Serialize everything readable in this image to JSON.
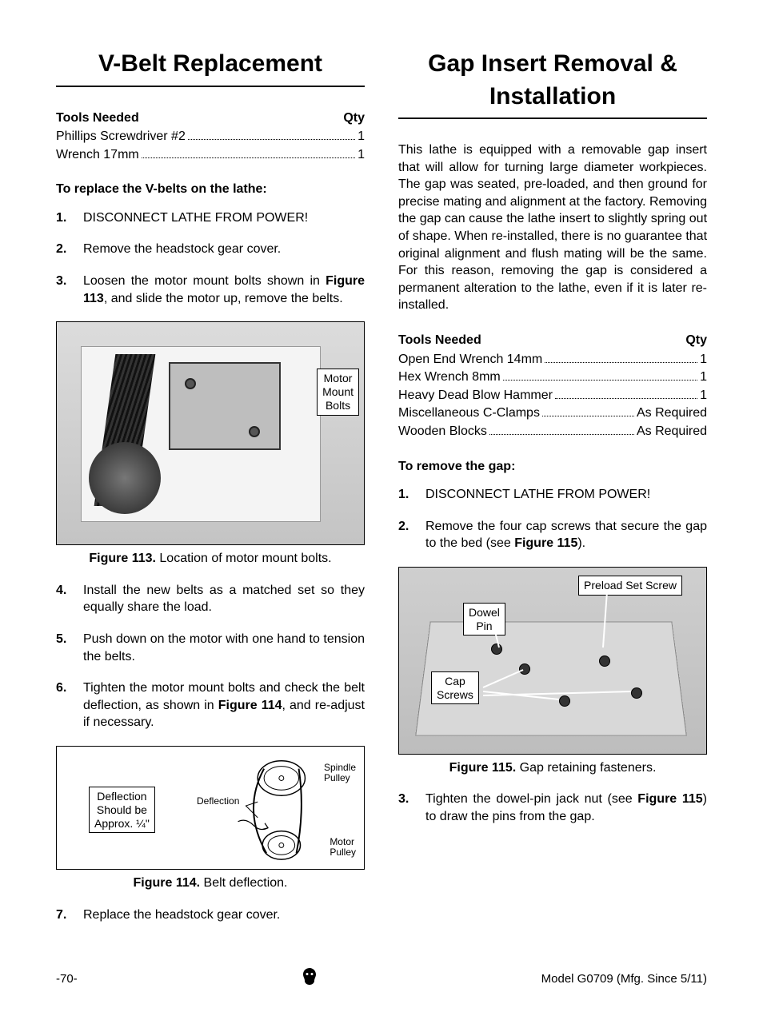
{
  "left": {
    "title": "V-Belt Replacement",
    "tools_header": {
      "label": "Tools Needed",
      "qty": "Qty"
    },
    "tools": [
      {
        "name": "Phillips Screwdriver #2",
        "qty": "1"
      },
      {
        "name": "Wrench 17mm",
        "qty": "1"
      }
    ],
    "procedure_head": "To replace the V-belts on the lathe:",
    "steps_a": [
      {
        "n": "1.",
        "t": "DISCONNECT LATHE FROM POWER!"
      },
      {
        "n": "2.",
        "t": "Remove the headstock gear cover."
      },
      {
        "n": "3.",
        "t": "Loosen the motor mount bolts shown in <b>Figure 113</b>, and slide the motor up, remove the belts."
      }
    ],
    "fig113": {
      "callout": "Motor\nMount\nBolts",
      "caption_b": "Figure 113.",
      "caption_t": " Location of motor mount bolts."
    },
    "steps_b": [
      {
        "n": "4.",
        "t": "Install the new belts as a matched set so they equally share the load."
      },
      {
        "n": "5.",
        "t": "Push down on the motor with one hand to tension the belts."
      },
      {
        "n": "6.",
        "t": "Tighten the motor mount bolts and check the belt deflection, as shown in <b>Figure 114</b>, and re-adjust if necessary."
      }
    ],
    "fig114": {
      "box": "Deflection\nShould be\nApprox. ¼\"",
      "label_deflection": "Deflection",
      "label_spindle": "Spindle\nPulley",
      "label_motor": "Motor\nPulley",
      "caption_b": "Figure 114.",
      "caption_t": " Belt deflection."
    },
    "steps_c": [
      {
        "n": "7.",
        "t": "Replace the headstock gear cover."
      }
    ]
  },
  "right": {
    "title": "Gap Insert Removal & Installation",
    "intro": "This lathe is equipped with a removable gap insert that will allow for turning large diameter workpieces. The gap was seated, pre-loaded, and then ground for precise mating and alignment at the factory. Removing the gap can cause the lathe insert to slightly spring out of shape. When re-installed, there is no guarantee that original alignment and flush mating will be the same. For this reason, removing the gap is considered a permanent alteration to the lathe, even if it is later re-installed.",
    "tools_header": {
      "label": "Tools Needed",
      "qty": "Qty"
    },
    "tools": [
      {
        "name": "Open End Wrench 14mm",
        "qty": "1"
      },
      {
        "name": "Hex Wrench 8mm",
        "qty": "1"
      },
      {
        "name": "Heavy Dead Blow Hammer",
        "qty": "1"
      },
      {
        "name": "Miscellaneous C-Clamps",
        "qty": "As Required"
      },
      {
        "name": "Wooden Blocks",
        "qty": "As Required"
      }
    ],
    "procedure_head": "To remove the gap:",
    "steps_a": [
      {
        "n": "1.",
        "t": "DISCONNECT LATHE FROM POWER!"
      },
      {
        "n": "2.",
        "t": "Remove the four cap screws that secure the gap to the bed (see <b>Figure 115</b>)."
      }
    ],
    "fig115": {
      "callout_preload": "Preload Set Screw",
      "callout_dowel": "Dowel\nPin",
      "callout_cap": "Cap\nScrews",
      "caption_b": "Figure 115.",
      "caption_t": " Gap retaining fasteners."
    },
    "steps_b": [
      {
        "n": "3.",
        "t": "Tighten the dowel-pin jack nut (see <b>Figure 115</b>) to draw the pins from the gap."
      }
    ]
  },
  "footer": {
    "page": "-70-",
    "model": "Model G0709 (Mfg. Since 5/11)"
  }
}
